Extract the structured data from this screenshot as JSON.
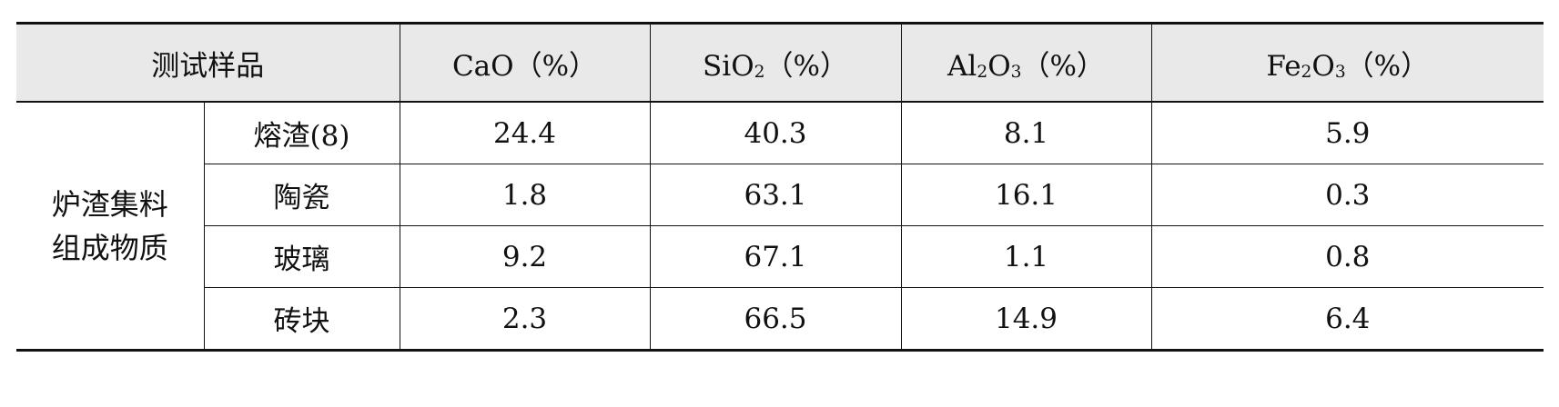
{
  "table": {
    "header": {
      "sample_label": "测试样品",
      "cao": {
        "text": "CaO（%）"
      },
      "sio2": {
        "pre": "SiO",
        "sub": "2",
        "post": "（%）"
      },
      "al2o3": {
        "pre": "Al",
        "sub1": "2",
        "mid": "O",
        "sub2": "3",
        "post": "（%）"
      },
      "fe2o3": {
        "pre": "Fe",
        "sub1": "2",
        "mid": "O",
        "sub2": "3",
        "post": "（%）"
      }
    },
    "group": {
      "line1": "炉渣集料",
      "line2": "组成物质"
    },
    "rows": [
      {
        "name": "熔渣(8)",
        "cao": "24.4",
        "sio2": "40.3",
        "al2o3": "8.1",
        "fe2o3": "5.9"
      },
      {
        "name": "陶瓷",
        "cao": "1.8",
        "sio2": "63.1",
        "al2o3": "16.1",
        "fe2o3": "0.3"
      },
      {
        "name": "玻璃",
        "cao": "9.2",
        "sio2": "67.1",
        "al2o3": "1.1",
        "fe2o3": "0.8"
      },
      {
        "name": "砖块",
        "cao": "2.3",
        "sio2": "66.5",
        "al2o3": "14.9",
        "fe2o3": "6.4"
      }
    ]
  }
}
